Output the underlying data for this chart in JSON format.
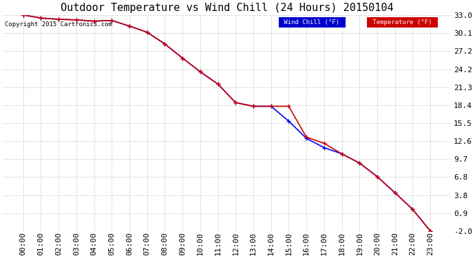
{
  "title": "Outdoor Temperature vs Wind Chill (24 Hours) 20150104",
  "copyright": "Copyright 2015 Cartronics.com",
  "x_labels": [
    "00:00",
    "01:00",
    "02:00",
    "03:00",
    "04:00",
    "05:00",
    "06:00",
    "07:00",
    "08:00",
    "09:00",
    "10:00",
    "11:00",
    "12:00",
    "13:00",
    "14:00",
    "15:00",
    "16:00",
    "17:00",
    "18:00",
    "19:00",
    "20:00",
    "21:00",
    "22:00",
    "23:00"
  ],
  "temperature": [
    33.0,
    32.5,
    32.3,
    32.2,
    32.0,
    32.1,
    31.2,
    30.2,
    28.3,
    26.0,
    23.8,
    21.8,
    18.8,
    18.2,
    18.2,
    18.2,
    13.2,
    12.2,
    10.5,
    9.0,
    6.8,
    4.2,
    1.5,
    -2.0
  ],
  "wind_chill": [
    33.0,
    32.5,
    32.3,
    32.2,
    32.0,
    32.1,
    31.2,
    30.2,
    28.3,
    26.0,
    23.8,
    21.8,
    18.8,
    18.2,
    18.2,
    15.8,
    13.0,
    11.5,
    10.5,
    9.0,
    6.8,
    4.2,
    1.5,
    -2.0
  ],
  "y_ticks": [
    -2.0,
    0.9,
    3.8,
    6.8,
    9.7,
    12.6,
    15.5,
    18.4,
    21.3,
    24.2,
    27.2,
    30.1,
    33.0
  ],
  "ylim": [
    -2.0,
    33.0
  ],
  "bg_color": "#ffffff",
  "grid_color": "#c8c8c8",
  "temp_color": "#cc0000",
  "wind_chill_color": "#0000ee",
  "legend_wind_chill_bg": "#0000cc",
  "legend_temp_bg": "#cc0000",
  "title_fontsize": 11,
  "axis_fontsize": 8,
  "copyright_fontsize": 6.5
}
